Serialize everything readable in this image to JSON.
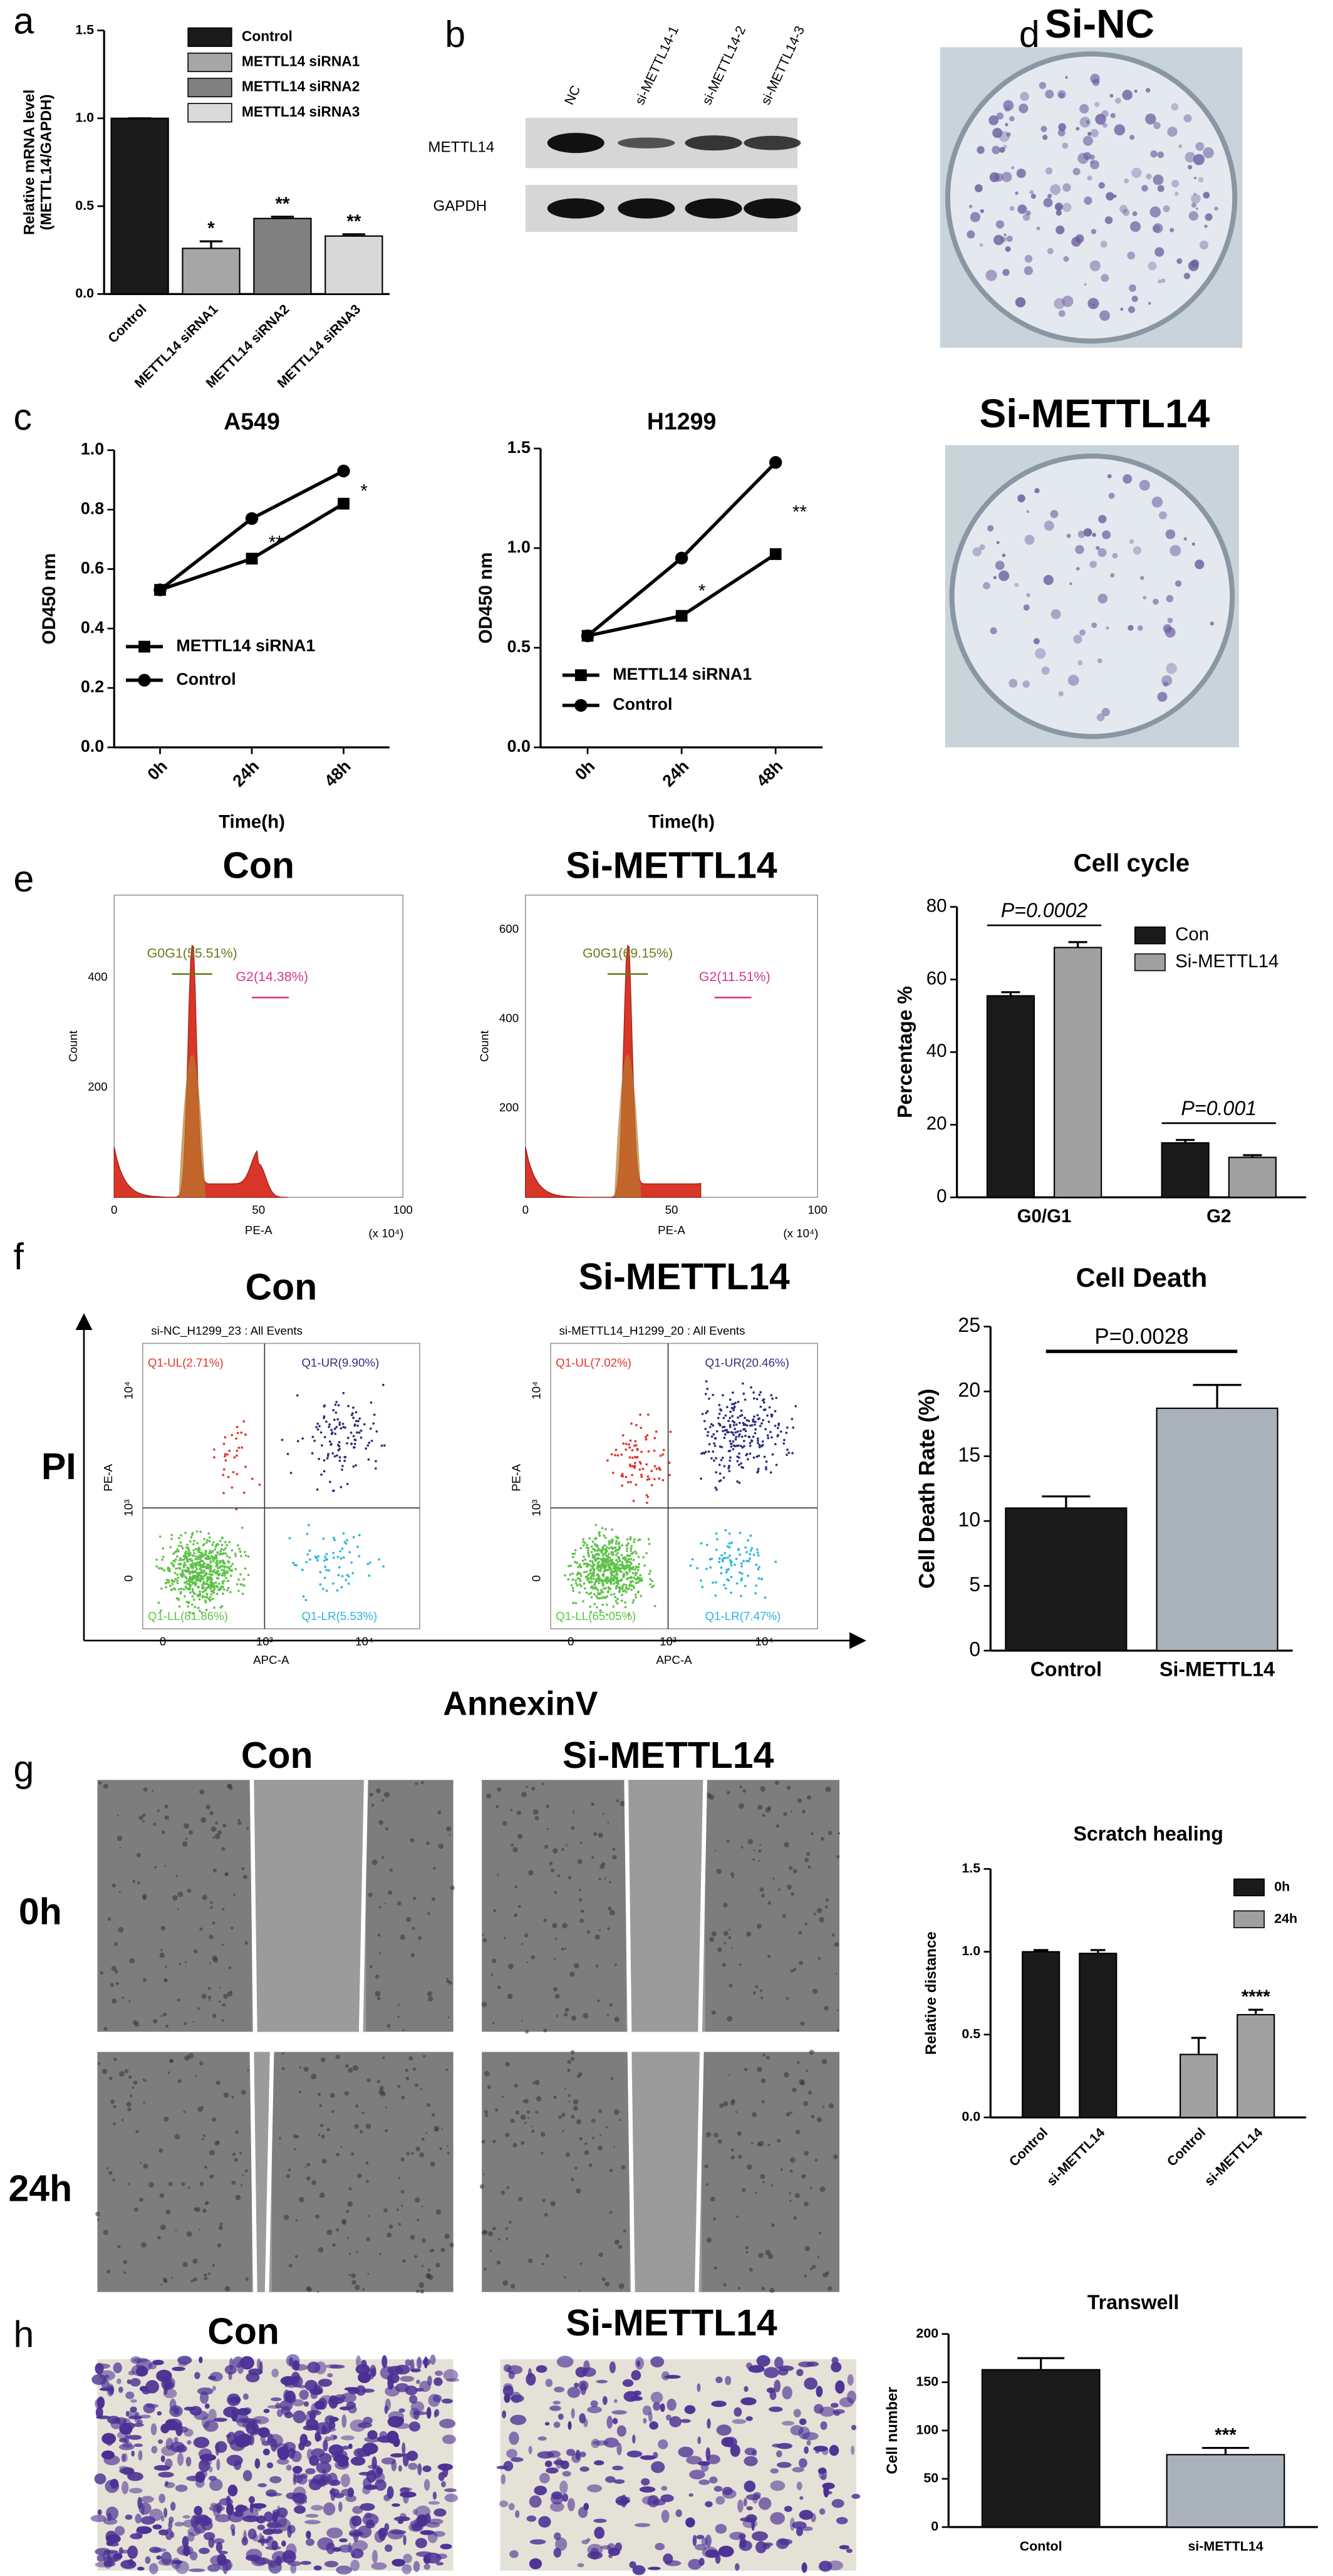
{
  "chart_data": [
    {
      "type": "bar",
      "y_label": [
        "Relative mRNA level",
        "(METTL14/GAPDH)"
      ],
      "categories": [
        "Control",
        "METTL14 siRNA1",
        "METTL14 siRNA2",
        "METTL14 siRNA3"
      ],
      "values": [
        1.0,
        0.26,
        0.43,
        0.33
      ],
      "errors": [
        0,
        0.04,
        0.01,
        0.01
      ],
      "colors": [
        "#1a1a1a",
        "#a6a6a6",
        "#808080",
        "#d9d9d9"
      ],
      "annotations": [
        null,
        "*",
        "**",
        "**"
      ],
      "legend": true,
      "ylim": [
        0,
        1.5
      ],
      "yticks": [
        {
          "value": 0,
          "label": "0.0"
        },
        0.5,
        {
          "value": 1,
          "label": "1.0"
        },
        1.5
      ]
    },
    {
      "type": "line",
      "title": "A549",
      "x_label": "Time(h)",
      "y_label": "OD450 nm",
      "categories": [
        "0h",
        "24h",
        "48h"
      ],
      "series": [
        {
          "name": "METTL14 siRNA1",
          "marker": "square",
          "color": "#000000",
          "values": [
            0.53,
            0.635,
            0.82
          ]
        },
        {
          "name": "Control",
          "marker": "circle",
          "color": "#000000",
          "values": [
            0.53,
            0.77,
            0.93
          ]
        }
      ],
      "annotations": [
        null,
        "**",
        "*"
      ],
      "ylim": [
        0,
        1.0
      ],
      "yticks": [
        {
          "value": 0,
          "label": "0.0"
        },
        0.2,
        0.4,
        0.6,
        0.8,
        {
          "value": 1,
          "label": "1.0"
        }
      ]
    },
    {
      "type": "line",
      "title": "H1299",
      "x_label": "Time(h)",
      "y_label": "OD450 nm",
      "categories": [
        "0h",
        "24h",
        "48h"
      ],
      "series": [
        {
          "name": "METTL14 siRNA1",
          "marker": "square",
          "color": "#000000",
          "values": [
            0.56,
            0.66,
            0.97
          ]
        },
        {
          "name": "Control",
          "marker": "circle",
          "color": "#000000",
          "values": [
            0.56,
            0.95,
            1.43
          ]
        }
      ],
      "annotations": [
        null,
        "*",
        "**"
      ],
      "ylim": [
        0,
        1.5
      ],
      "yticks": [
        {
          "value": 0,
          "label": "0.0"
        },
        0.5,
        {
          "value": 1,
          "label": "1.0"
        },
        1.5
      ]
    },
    {
      "type": "bar",
      "title": "Cell cycle",
      "y_label": "Percentage %",
      "categories": [
        "G0/G1",
        "G2"
      ],
      "series": [
        {
          "name": "Con",
          "color": "#1a1a1a",
          "values": [
            55.5,
            15.0
          ],
          "errors": [
            1.0,
            0.8
          ]
        },
        {
          "name": "Si-METTL14",
          "color": "#a0a0a0",
          "values": [
            68.8,
            11.0
          ],
          "errors": [
            1.5,
            0.6
          ]
        }
      ],
      "annotations": [
        "P=0.0002",
        "P=0.001"
      ],
      "annotation_bracket": true,
      "annotation_italic": true,
      "ylim": [
        0,
        80
      ],
      "yticks": [
        0,
        20,
        40,
        60,
        80
      ]
    },
    {
      "type": "bar",
      "title": "Cell Death",
      "y_label": "Cell Death Rate (%)",
      "categories": [
        "Control",
        "Si-METTL14"
      ],
      "values": [
        11.0,
        18.7
      ],
      "errors": [
        0.9,
        1.8
      ],
      "colors": [
        "#1a1a1a",
        "#a9b1bb"
      ],
      "annotations": [
        "P=0.0028"
      ],
      "annotation_bracket": true,
      "ylim": [
        0,
        25
      ],
      "yticks": [
        0,
        5,
        10,
        15,
        20,
        25
      ]
    },
    {
      "type": "bar",
      "title": "Scratch healing",
      "y_label": "Relative distance",
      "categories": [
        "Control",
        "si-METTL14"
      ],
      "grouping": "series",
      "series": [
        {
          "name": "0h",
          "color": "#1a1a1a",
          "values": [
            1.0,
            0.99
          ],
          "errors": [
            0.01,
            0.02
          ]
        },
        {
          "name": "24h",
          "color": "#a0a0a0",
          "values": [
            0.38,
            0.62
          ],
          "errors": [
            0.1,
            0.03
          ],
          "annotations": [
            null,
            "****"
          ]
        }
      ],
      "ylim": [
        0,
        1.5
      ],
      "yticks": [
        {
          "value": 0,
          "label": "0.0"
        },
        0.5,
        {
          "value": 1,
          "label": "1.0"
        },
        1.5
      ]
    },
    {
      "type": "bar",
      "title": "Transwell",
      "y_label": "Cell number",
      "categories": [
        "Contol",
        "si-METTL14"
      ],
      "values": [
        163,
        75
      ],
      "errors": [
        12,
        7
      ],
      "colors": [
        "#1a1a1a",
        "#a9b1bb"
      ],
      "annotations": [
        null,
        "***"
      ],
      "ylim": [
        0,
        200
      ],
      "yticks": [
        0,
        50,
        100,
        150,
        200
      ]
    }
  ],
  "panels": {
    "letters": [
      "a",
      "b",
      "c",
      "d",
      "e",
      "f",
      "g",
      "h"
    ],
    "blot": {
      "lanes": [
        "NC",
        "si-METTL14-1",
        "si-METTL14-2",
        "si-METTL14-3"
      ],
      "rows": [
        "METTL14",
        "GAPDH"
      ]
    },
    "colony": {
      "titles": [
        "Si-NC",
        "Si-METTL14"
      ]
    },
    "cycle_histograms": [
      {
        "title": "Con",
        "gates": [
          "G0G1(55.51%)",
          "G2(14.38%)"
        ],
        "yticks": [
          "200",
          "400"
        ]
      },
      {
        "title": "Si-METTL14",
        "gates": [
          "G0G1(69.15%)",
          "G2(11.51%)"
        ],
        "yticks": [
          "200",
          "400",
          "600"
        ]
      }
    ],
    "histogram_axes": {
      "y_label": "Count",
      "x_label": "PE-A",
      "x_unit": "(x 10⁴)",
      "xticks": [
        "0",
        "50",
        "100"
      ]
    },
    "apoptosis": [
      {
        "title": "Con",
        "header": "si-NC_H1299_23 : All Events",
        "quadrants": [
          "Q1-UL(2.71%)",
          "Q1-UR(9.90%)",
          "Q1-LL(81.86%)",
          "Q1-LR(5.53%)"
        ]
      },
      {
        "title": "Si-METTL14",
        "header": "si-METTL14_H1299_20 : All Events",
        "quadrants": [
          "Q1-UL(7.02%)",
          "Q1-UR(20.46%)",
          "Q1-LL(65.05%)",
          "Q1-LR(7.47%)"
        ]
      }
    ],
    "apoptosis_axes": {
      "y_label": "PE-A",
      "x_label": "APC-A",
      "ticks": [
        "0",
        "10³",
        "10⁴"
      ],
      "outer_y": "PI",
      "outer_x": "AnnexinV"
    },
    "scratch": {
      "columns": [
        "Con",
        "Si-METTL14"
      ],
      "rows": [
        "0h",
        "24h"
      ]
    },
    "transwell": {
      "titles": [
        "Con",
        "Si-METTL14"
      ]
    }
  }
}
